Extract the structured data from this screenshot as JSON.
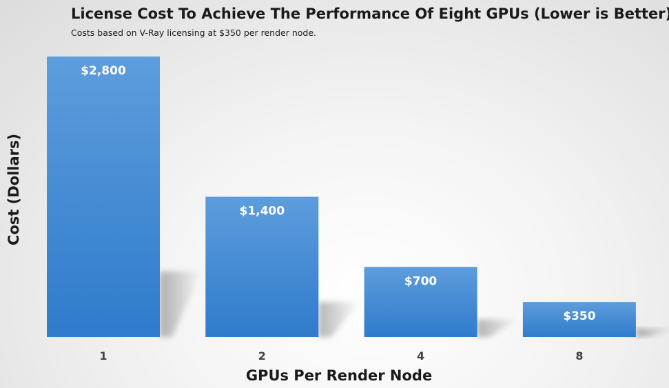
{
  "chart_data": {
    "type": "bar",
    "title": "License Cost To Achieve The Performance Of Eight GPUs (Lower is Better)",
    "subtitle": "Costs based on V-Ray licensing at $350 per render node.",
    "xlabel": "GPUs Per Render Node",
    "ylabel": "Cost (Dollars)",
    "categories": [
      "1",
      "2",
      "4",
      "8"
    ],
    "values": [
      2800,
      1400,
      700,
      350
    ],
    "data_labels": [
      "$2,800",
      "$1,400",
      "$700",
      "$350"
    ],
    "ylim": [
      0,
      2800
    ],
    "grid": false,
    "legend": "none",
    "bar_color": "#3c85d2"
  }
}
